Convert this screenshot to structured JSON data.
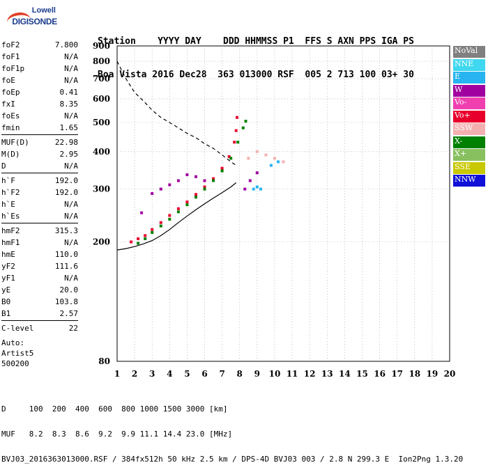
{
  "logo": {
    "line1": "Lowell",
    "line2": "DIGISONDE"
  },
  "header": {
    "line1": "Station    YYYY DAY    DDD HHMMSS P1  FFS S AXN PPS IGA PS",
    "line2": "Boa Vista 2016 Dec28  363 013000 RSF  005 2 713 100 03+ 30"
  },
  "params": [
    {
      "group": [
        [
          "foF2",
          "7.800"
        ],
        [
          "foF1",
          "N/A"
        ],
        [
          "foF1p",
          "N/A"
        ],
        [
          "foE",
          "N/A"
        ],
        [
          "foEp",
          "0.41"
        ],
        [
          "fxI",
          "8.35"
        ],
        [
          "foEs",
          "N/A"
        ],
        [
          "fmin",
          "1.65"
        ]
      ]
    },
    {
      "group": [
        [
          "MUF(D)",
          "22.98"
        ],
        [
          "M(D)",
          "2.95"
        ],
        [
          "D",
          "N/A"
        ]
      ]
    },
    {
      "group": [
        [
          "h`F",
          "192.0"
        ],
        [
          "h`F2",
          "192.0"
        ],
        [
          "h`E",
          "N/A"
        ],
        [
          "h`Es",
          "N/A"
        ]
      ]
    },
    {
      "group": [
        [
          "hmF2",
          "315.3"
        ],
        [
          "hmF1",
          "N/A"
        ],
        [
          "hmE",
          "110.0"
        ],
        [
          "yF2",
          "111.6"
        ],
        [
          "yF1",
          "N/A"
        ],
        [
          "yE",
          "20.0"
        ],
        [
          "B0",
          "103.8"
        ],
        [
          "B1",
          "2.57"
        ]
      ]
    },
    {
      "group": [
        [
          "C-level",
          "22"
        ]
      ]
    }
  ],
  "auto": {
    "line1": "Auto:",
    "line2": "Artist5",
    "line3": "500200"
  },
  "bottom": {
    "d_line": "D     100  200  400  600  800 1000 1500 3000 [km]",
    "muf_line": "MUF   8.2  8.3  8.6  9.2  9.9 11.1 14.4 23.0 [MHz]",
    "info_line": "BVJ03_2016363013000.RSF / 384fx512h 50 kHz 2.5 km / DPS-4D BVJ03 003 / 2.8 N 299.3 E  Ion2Png 1.3.20"
  },
  "legend": [
    {
      "label": "NoVal",
      "color": "#808080"
    },
    {
      "label": "NNE",
      "color": "#40d8f0"
    },
    {
      "label": "E",
      "color": "#28b4f0"
    },
    {
      "label": "W",
      "color": "#a000a0"
    },
    {
      "label": "Vo-",
      "color": "#f040b0"
    },
    {
      "label": "Vo+",
      "color": "#e8002c"
    },
    {
      "label": "SSW",
      "color": "#f4b0b0"
    },
    {
      "label": "X-",
      "color": "#008000"
    },
    {
      "label": "X+",
      "color": "#88c060"
    },
    {
      "label": "SSE",
      "color": "#c8c800"
    },
    {
      "label": "NNW",
      "color": "#1010d8"
    }
  ],
  "chart_data": {
    "type": "scatter",
    "title": "",
    "xlabel": "",
    "ylabel": "",
    "xlim": [
      1,
      20
    ],
    "ylim": [
      80,
      900
    ],
    "x_ticks": [
      1,
      2,
      3,
      4,
      5,
      6,
      7,
      8,
      9,
      10,
      11,
      12,
      13,
      14,
      15,
      16,
      17,
      18,
      19,
      20
    ],
    "y_ticks": [
      80,
      200,
      300,
      400,
      500,
      600,
      700,
      800,
      900
    ],
    "y_scale": "log-like (virtual height km)",
    "grid": "dotted",
    "legend_position": "right",
    "series": [
      {
        "name": "Vo+",
        "values": [
          [
            1.8,
            200
          ],
          [
            2.2,
            205
          ],
          [
            2.6,
            210
          ],
          [
            3.0,
            220
          ],
          [
            3.5,
            232
          ],
          [
            4.0,
            245
          ],
          [
            4.5,
            258
          ],
          [
            5.0,
            272
          ],
          [
            5.5,
            288
          ],
          [
            6.0,
            305
          ],
          [
            6.5,
            325
          ],
          [
            7.0,
            352
          ],
          [
            7.4,
            385
          ],
          [
            7.7,
            430
          ],
          [
            7.8,
            470
          ],
          [
            7.85,
            520
          ]
        ]
      },
      {
        "name": "X-",
        "values": [
          [
            2.2,
            198
          ],
          [
            2.6,
            205
          ],
          [
            3.0,
            215
          ],
          [
            3.5,
            226
          ],
          [
            4.0,
            238
          ],
          [
            4.5,
            252
          ],
          [
            5.0,
            266
          ],
          [
            5.5,
            282
          ],
          [
            6.0,
            300
          ],
          [
            6.5,
            320
          ],
          [
            7.0,
            345
          ],
          [
            7.5,
            380
          ],
          [
            7.9,
            430
          ],
          [
            8.2,
            480
          ],
          [
            8.35,
            505
          ]
        ]
      },
      {
        "name": "W",
        "values": [
          [
            2.4,
            250
          ],
          [
            3.0,
            290
          ],
          [
            3.5,
            300
          ],
          [
            4.0,
            310
          ],
          [
            4.5,
            320
          ],
          [
            5.0,
            335
          ],
          [
            5.5,
            330
          ],
          [
            6.0,
            320
          ],
          [
            8.3,
            300
          ],
          [
            8.6,
            320
          ],
          [
            9.0,
            340
          ]
        ]
      },
      {
        "name": "E",
        "values": [
          [
            8.8,
            300
          ],
          [
            9.0,
            305
          ],
          [
            9.2,
            300
          ],
          [
            9.8,
            360
          ],
          [
            10.2,
            370
          ]
        ]
      },
      {
        "name": "SSW",
        "values": [
          [
            8.5,
            380
          ],
          [
            9.0,
            400
          ],
          [
            9.5,
            390
          ],
          [
            10.0,
            380
          ],
          [
            10.5,
            370
          ]
        ]
      }
    ],
    "curves": {
      "maximum_height_dashed": [
        [
          1.0,
          800
        ],
        [
          1.5,
          700
        ],
        [
          2.0,
          630
        ],
        [
          2.5,
          590
        ],
        [
          3.0,
          550
        ],
        [
          3.5,
          520
        ],
        [
          4.0,
          500
        ],
        [
          4.5,
          480
        ],
        [
          5.0,
          460
        ],
        [
          5.5,
          445
        ],
        [
          6.0,
          425
        ],
        [
          6.5,
          410
        ],
        [
          7.0,
          390
        ],
        [
          7.5,
          370
        ],
        [
          7.8,
          360
        ]
      ],
      "true_height_profile_solid": [
        [
          1.0,
          188
        ],
        [
          1.5,
          190
        ],
        [
          2.0,
          193
        ],
        [
          2.5,
          197
        ],
        [
          3.0,
          202
        ],
        [
          3.5,
          210
        ],
        [
          4.0,
          220
        ],
        [
          4.5,
          232
        ],
        [
          5.0,
          244
        ],
        [
          5.5,
          256
        ],
        [
          6.0,
          268
        ],
        [
          6.5,
          280
        ],
        [
          7.0,
          292
        ],
        [
          7.5,
          305
        ],
        [
          7.8,
          315
        ]
      ]
    }
  }
}
